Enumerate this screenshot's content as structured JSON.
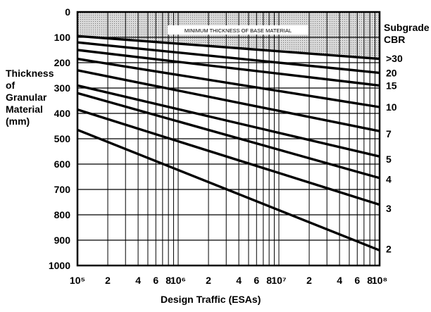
{
  "chart_data": {
    "type": "line",
    "xlabel": "Design Traffic (ESAs)",
    "ylabel": [
      "Thickness",
      "of",
      "Granular",
      "Material",
      "(mm)"
    ],
    "x_scale": "log",
    "xlim": [
      100000,
      100000000
    ],
    "ylim": [
      0,
      1000
    ],
    "y_inverted": true,
    "y_ticks": [
      "0",
      "100",
      "200",
      "300",
      "400",
      "500",
      "600",
      "700",
      "800",
      "900",
      "1000"
    ],
    "x_tick_labels": [
      {
        "x": 100000,
        "text": "10⁵"
      },
      {
        "x": 200000,
        "text": "2"
      },
      {
        "x": 400000,
        "text": "4"
      },
      {
        "x": 600000,
        "text": "6"
      },
      {
        "x": 800000,
        "text": "8"
      },
      {
        "x": 1000000,
        "text": "10⁶"
      },
      {
        "x": 2000000,
        "text": "2"
      },
      {
        "x": 4000000,
        "text": "4"
      },
      {
        "x": 6000000,
        "text": "6"
      },
      {
        "x": 8000000,
        "text": "8"
      },
      {
        "x": 10000000,
        "text": "10⁷"
      },
      {
        "x": 20000000,
        "text": "2"
      },
      {
        "x": 40000000,
        "text": "4"
      },
      {
        "x": 60000000,
        "text": "6"
      },
      {
        "x": 80000000,
        "text": "8"
      },
      {
        "x": 100000000,
        "text": "10⁸"
      }
    ],
    "vertical_grid_x": [
      200000,
      300000,
      400000,
      500000,
      600000,
      700000,
      800000,
      900000,
      1000000,
      2000000,
      3000000,
      4000000,
      5000000,
      6000000,
      7000000,
      8000000,
      9000000,
      10000000,
      20000000,
      30000000,
      40000000,
      50000000,
      60000000,
      70000000,
      80000000,
      90000000
    ],
    "grid": true,
    "shaded_region": {
      "label": "MINIMUM THICKNESS OF BASE MATERIAL",
      "top_y": 0,
      "boundary": [
        [
          100000,
          95
        ],
        [
          100000000,
          185
        ]
      ]
    },
    "legend_title": [
      "Subgrade",
      "CBR"
    ],
    "series": [
      {
        "name": ">30",
        "points": [
          [
            100000,
            95
          ],
          [
            100000000,
            185
          ]
        ]
      },
      {
        "name": "20",
        "points": [
          [
            100000,
            120
          ],
          [
            100000000,
            240
          ]
        ]
      },
      {
        "name": "15",
        "points": [
          [
            100000,
            150
          ],
          [
            100000000,
            290
          ]
        ]
      },
      {
        "name": "10",
        "points": [
          [
            100000,
            185
          ],
          [
            100000000,
            375
          ]
        ]
      },
      {
        "name": "7",
        "points": [
          [
            100000,
            230
          ],
          [
            100000000,
            470
          ]
        ]
      },
      {
        "name": "5",
        "points": [
          [
            100000,
            290
          ],
          [
            100000000,
            570
          ]
        ]
      },
      {
        "name": "4",
        "points": [
          [
            100000,
            320
          ],
          [
            100000000,
            655
          ]
        ]
      },
      {
        "name": "3",
        "points": [
          [
            100000,
            385
          ],
          [
            100000000,
            760
          ]
        ]
      },
      {
        "name": "2",
        "points": [
          [
            100000,
            465
          ],
          [
            100000000,
            940
          ]
        ]
      }
    ],
    "series_label_y": {
      ">30": 183,
      "20": 240,
      "15": 290,
      "10": 375,
      "7": 480,
      "5": 580,
      "4": 660,
      "3": 775,
      "2": 935
    }
  }
}
